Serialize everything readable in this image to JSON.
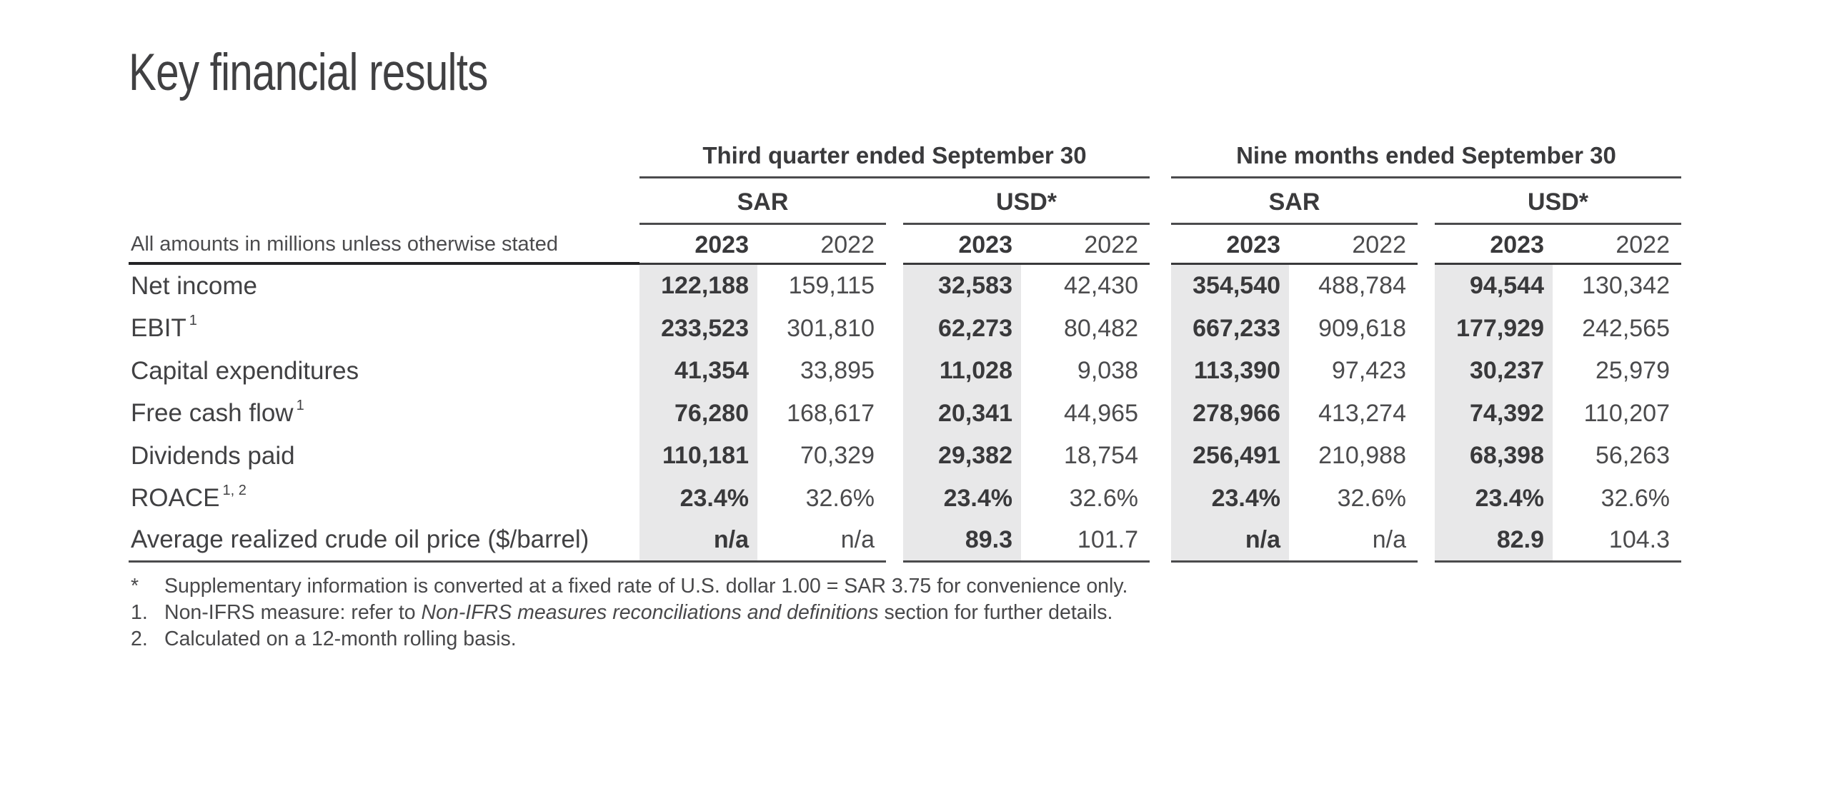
{
  "page_title": "Key financial results",
  "colors": {
    "text_dark": "#39393b",
    "text_regular": "#4b4b4d",
    "band_gray": "#e8e8e9",
    "rule_heavy": "#232325",
    "rule": "#4b4b4d"
  },
  "table": {
    "note": "All amounts in millions unless otherwise stated",
    "groups": [
      {
        "label": "Third quarter ended September 30",
        "currencies": [
          {
            "label": "SAR"
          },
          {
            "label": "USD*"
          }
        ]
      },
      {
        "label": "Nine months ended September 30",
        "currencies": [
          {
            "label": "SAR"
          },
          {
            "label": "USD*"
          }
        ]
      }
    ],
    "year_headers": [
      "2023",
      "2022"
    ],
    "rows": [
      {
        "label": "Net income",
        "sup": "",
        "values": [
          [
            "122,188",
            "159,115"
          ],
          [
            "32,583",
            "42,430"
          ],
          [
            "354,540",
            "488,784"
          ],
          [
            "94,544",
            "130,342"
          ]
        ]
      },
      {
        "label": "EBIT",
        "sup": "1",
        "values": [
          [
            "233,523",
            "301,810"
          ],
          [
            "62,273",
            "80,482"
          ],
          [
            "667,233",
            "909,618"
          ],
          [
            "177,929",
            "242,565"
          ]
        ]
      },
      {
        "label": "Capital expenditures",
        "sup": "",
        "values": [
          [
            "41,354",
            "33,895"
          ],
          [
            "11,028",
            "9,038"
          ],
          [
            "113,390",
            "97,423"
          ],
          [
            "30,237",
            "25,979"
          ]
        ]
      },
      {
        "label": "Free cash flow",
        "sup": "1",
        "values": [
          [
            "76,280",
            "168,617"
          ],
          [
            "20,341",
            "44,965"
          ],
          [
            "278,966",
            "413,274"
          ],
          [
            "74,392",
            "110,207"
          ]
        ]
      },
      {
        "label": "Dividends paid",
        "sup": "",
        "values": [
          [
            "110,181",
            "70,329"
          ],
          [
            "29,382",
            "18,754"
          ],
          [
            "256,491",
            "210,988"
          ],
          [
            "68,398",
            "56,263"
          ]
        ]
      },
      {
        "label": "ROACE",
        "sup": "1, 2",
        "values": [
          [
            "23.4%",
            "32.6%"
          ],
          [
            "23.4%",
            "32.6%"
          ],
          [
            "23.4%",
            "32.6%"
          ],
          [
            "23.4%",
            "32.6%"
          ]
        ]
      },
      {
        "label": "Average realized crude oil price ($/barrel)",
        "sup": "",
        "values": [
          [
            "n/a",
            "n/a"
          ],
          [
            "89.3",
            "101.7"
          ],
          [
            "n/a",
            "n/a"
          ],
          [
            "82.9",
            "104.3"
          ]
        ]
      }
    ],
    "footnotes": [
      {
        "marker": "*",
        "pre": "Supplementary information is converted at a fixed rate of U.S. dollar 1.00 = SAR 3.75 for convenience only.",
        "italic": "",
        "post": ""
      },
      {
        "marker": "1.",
        "pre": "Non-IFRS measure: refer to ",
        "italic": "Non-IFRS measures reconciliations and definitions",
        "post": " section for further details."
      },
      {
        "marker": "2.",
        "pre": "Calculated on a 12-month rolling basis.",
        "italic": "",
        "post": ""
      }
    ]
  }
}
